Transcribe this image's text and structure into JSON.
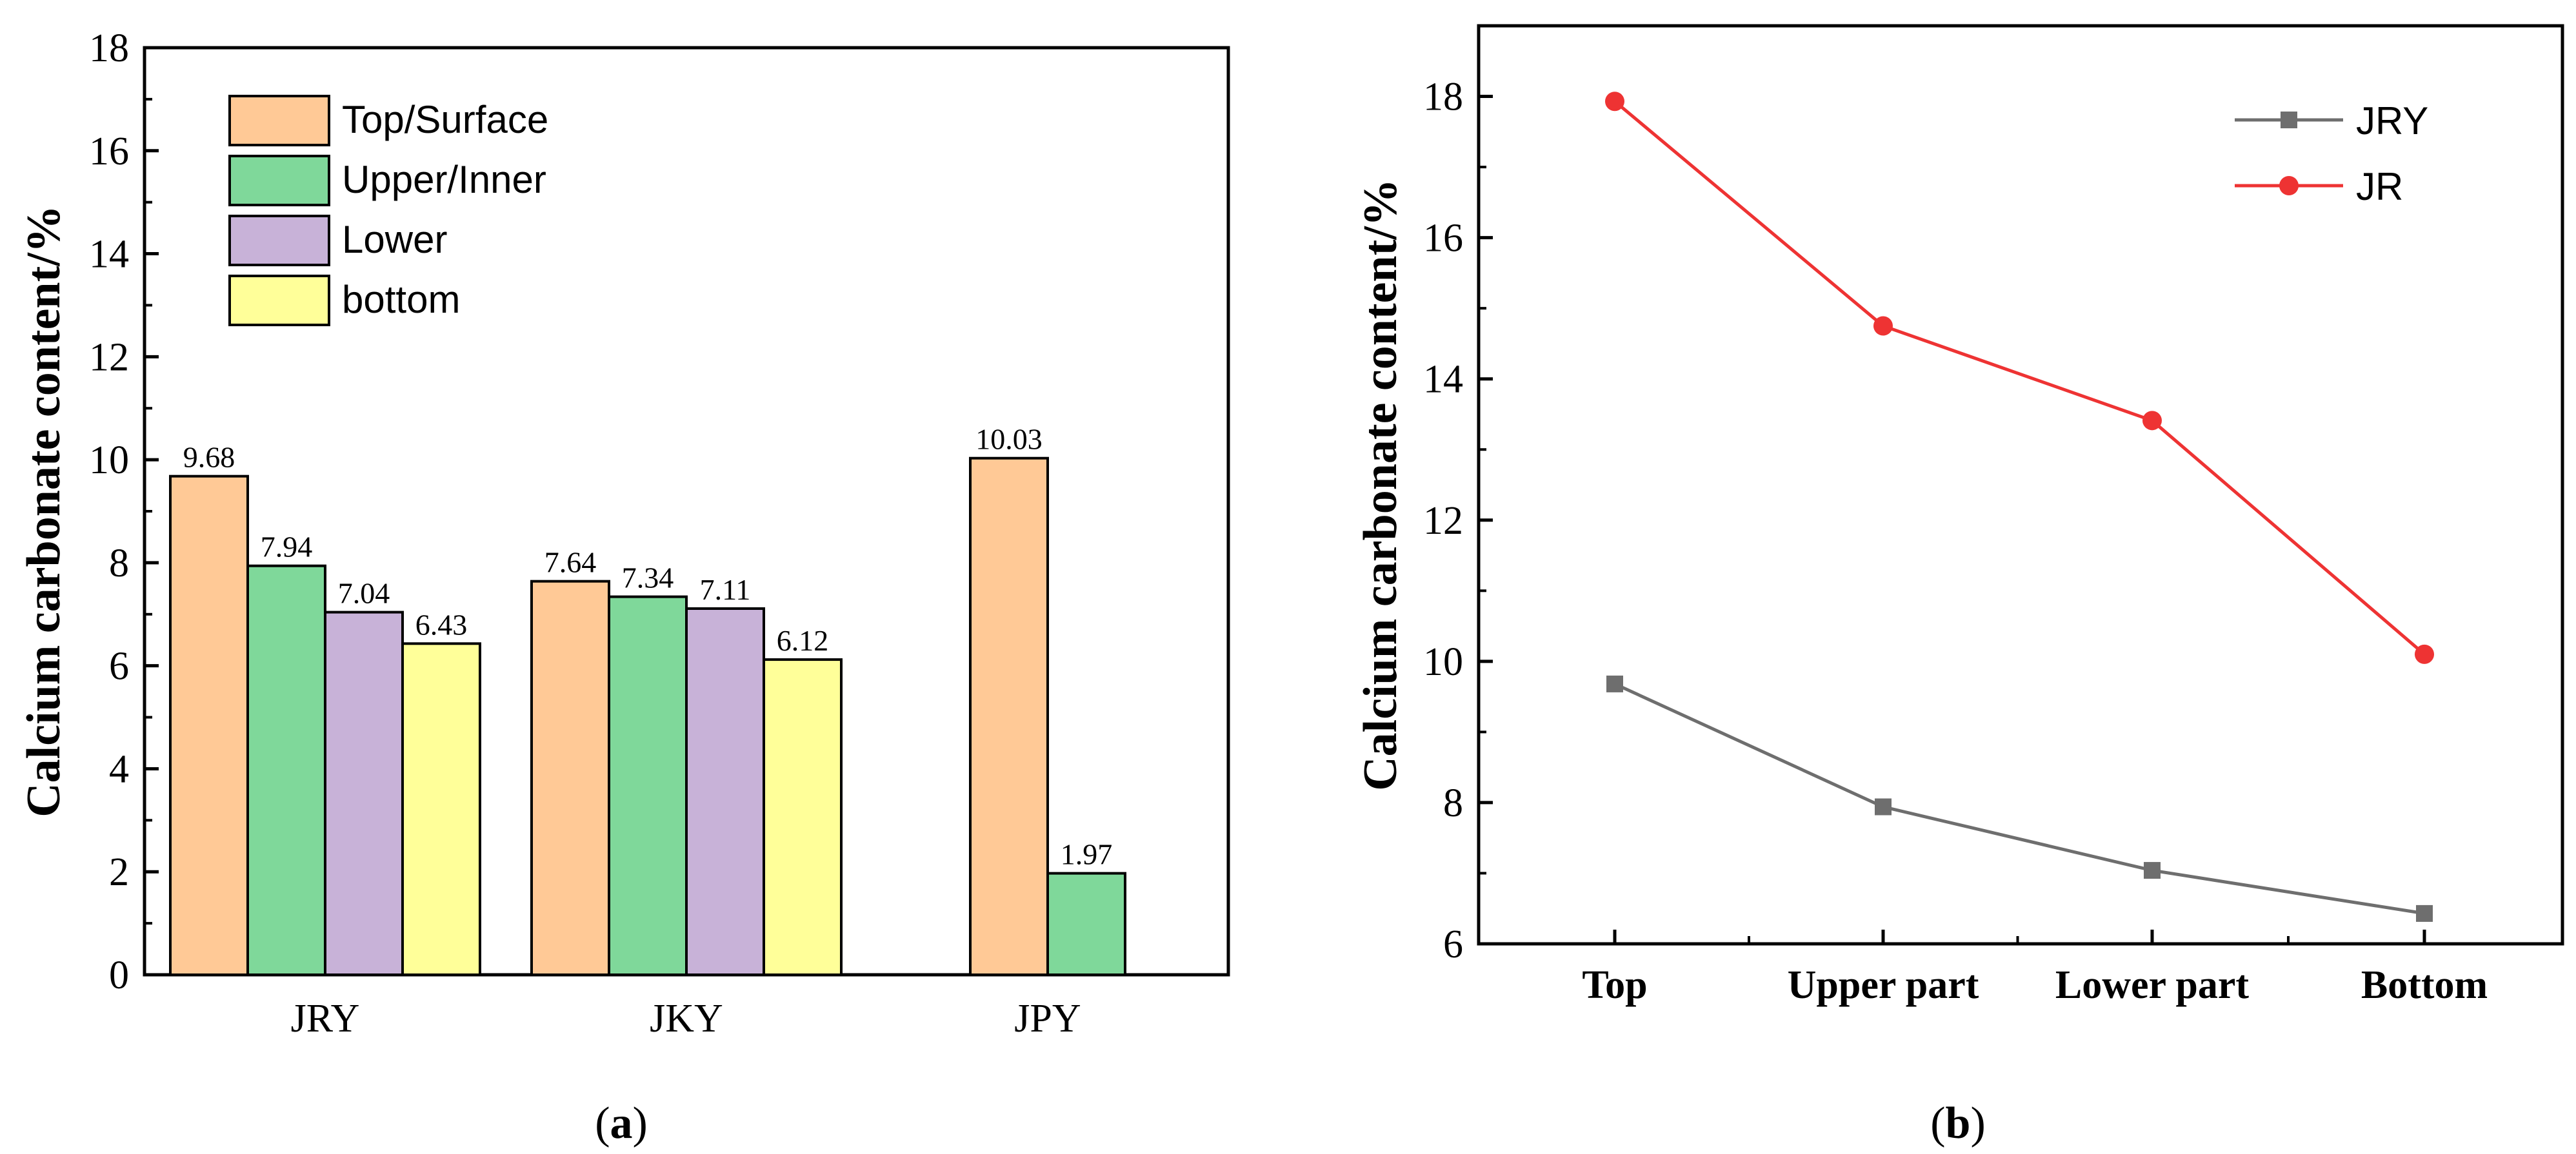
{
  "chart_data": [
    {
      "type": "bar",
      "panel_label": "a",
      "title": "",
      "xlabel": "",
      "ylabel": "Calcium carbonate content/%",
      "ylim": [
        0,
        18
      ],
      "yticks": [
        0,
        2,
        4,
        6,
        8,
        10,
        12,
        14,
        16,
        18
      ],
      "categories": [
        "JRY",
        "JKY",
        "JPY"
      ],
      "series": [
        {
          "name": "Top/Surface",
          "color": "#ffc996",
          "values": [
            9.68,
            7.64,
            10.03
          ],
          "labels": [
            "9.68",
            "7.64",
            "10.03"
          ]
        },
        {
          "name": "Upper/Inner",
          "color": "#7fd89a",
          "values": [
            7.94,
            7.34,
            1.97
          ],
          "labels": [
            "7.94",
            "7.34",
            "1.97"
          ]
        },
        {
          "name": "Lower",
          "color": "#c8b2d8",
          "values": [
            7.04,
            7.11,
            null
          ],
          "labels": [
            "7.04",
            "7.11",
            ""
          ]
        },
        {
          "name": "bottom",
          "color": "#ffff99",
          "values": [
            6.43,
            6.12,
            null
          ],
          "labels": [
            "6.43",
            "6.12",
            ""
          ]
        }
      ],
      "legend_position": "top-left",
      "grid": false
    },
    {
      "type": "line",
      "panel_label": "b",
      "title": "",
      "xlabel": "",
      "ylabel": "Calcium carbonate content/%",
      "ylim": [
        6,
        19
      ],
      "yticks": [
        6,
        8,
        10,
        12,
        14,
        16,
        18
      ],
      "categories": [
        "Top",
        "Upper part",
        "Lower part",
        "Bottom"
      ],
      "series": [
        {
          "name": "JRY",
          "color": "#6e6e6e",
          "marker": "square",
          "values": [
            9.68,
            7.94,
            7.04,
            6.43
          ]
        },
        {
          "name": "JR",
          "color": "#ee3333",
          "marker": "circle",
          "values": [
            17.93,
            14.75,
            13.41,
            10.1
          ]
        }
      ],
      "legend_position": "top-right",
      "grid": false
    }
  ]
}
